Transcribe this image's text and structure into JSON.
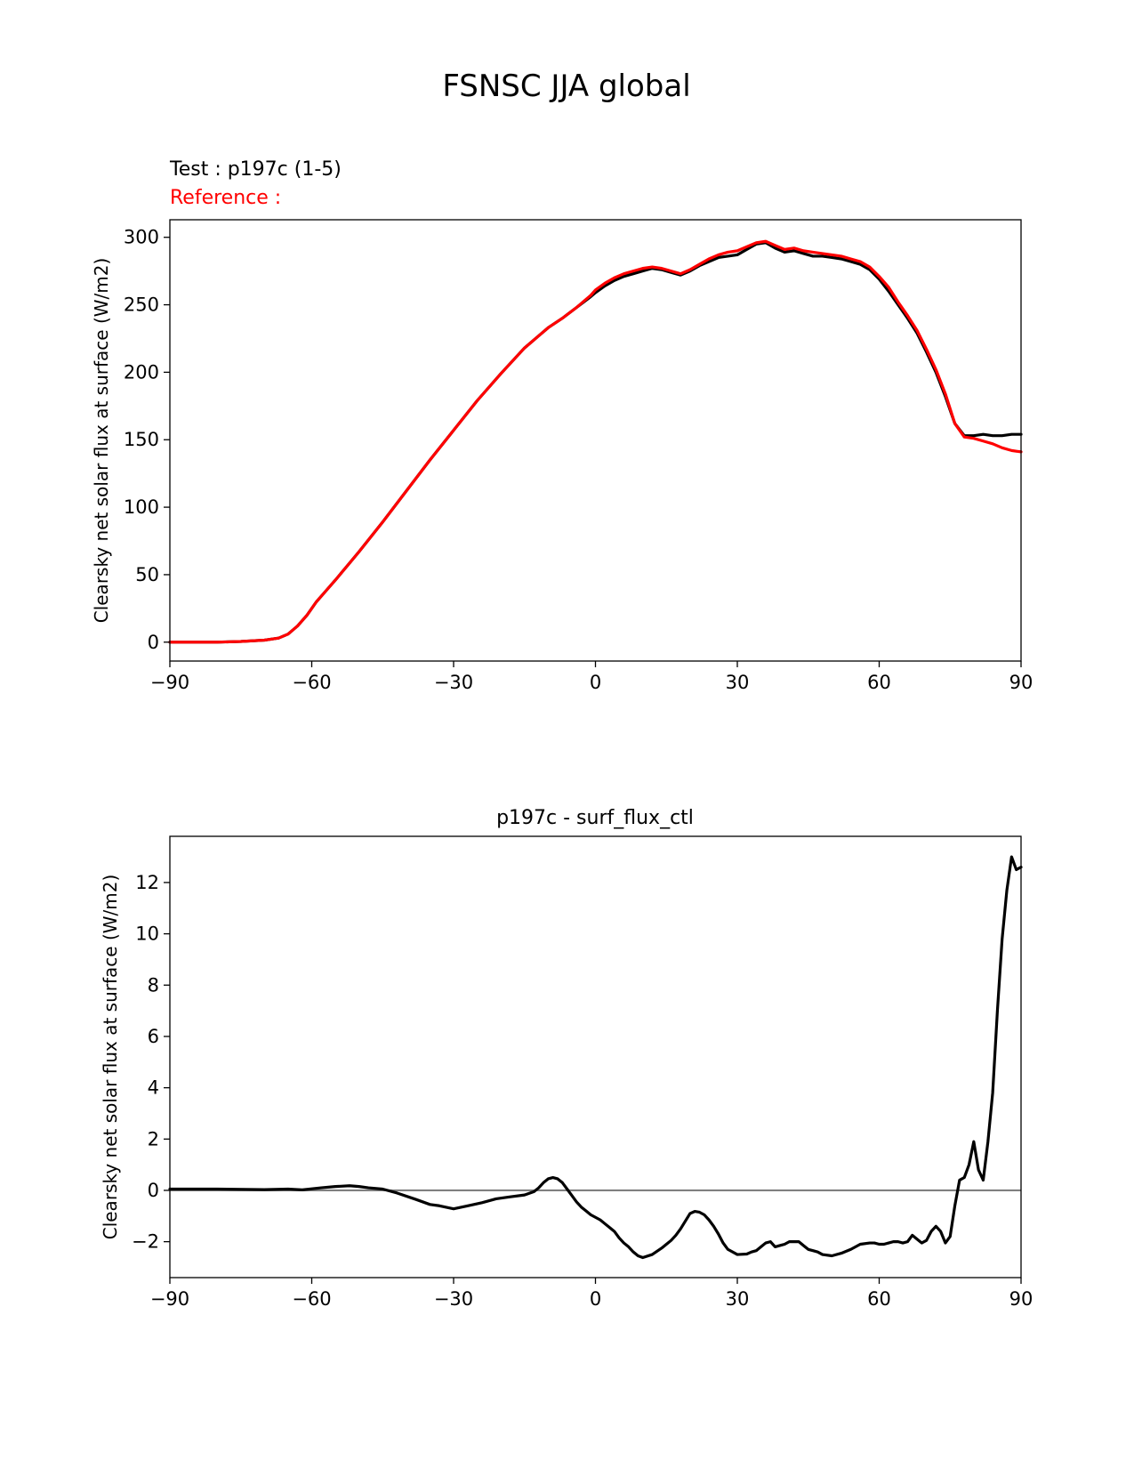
{
  "figure": {
    "title": "FSNSC JJA global"
  },
  "chart_data": [
    {
      "type": "line",
      "test_label": "Test : p197c (1-5)",
      "reference_label": "Reference :",
      "title": "",
      "xlabel": "",
      "ylabel": "Clearsky net solar flux at surface (W/m2)",
      "xlim": [
        -90,
        90
      ],
      "ylim": [
        -14,
        313
      ],
      "xticks": [
        -90,
        -60,
        -30,
        0,
        30,
        60,
        90
      ],
      "xtick_labels": [
        "−90",
        "−60",
        "−30",
        "0",
        "30",
        "60",
        "90"
      ],
      "yticks": [
        0,
        50,
        100,
        150,
        200,
        250,
        300
      ],
      "ytick_labels": [
        "0",
        "50",
        "100",
        "150",
        "200",
        "250",
        "300"
      ],
      "grid": false,
      "series": [
        {
          "role": "test",
          "color": "#000000",
          "x": [
            -90,
            -80,
            -75,
            -70,
            -67,
            -65,
            -63,
            -61,
            -59,
            -57,
            -55,
            -50,
            -45,
            -40,
            -35,
            -30,
            -25,
            -20,
            -15,
            -12,
            -10,
            -7,
            -4,
            -1,
            0,
            2,
            4,
            6,
            8,
            10,
            12,
            14,
            16,
            18,
            20,
            22,
            24,
            26,
            28,
            30,
            32,
            34,
            36,
            38,
            40,
            42,
            44,
            46,
            48,
            50,
            52,
            54,
            56,
            58,
            60,
            62,
            64,
            66,
            68,
            70,
            72,
            74,
            76,
            78,
            80,
            82,
            84,
            86,
            88,
            90
          ],
          "y": [
            0,
            0,
            0.5,
            1.5,
            3,
            6,
            12,
            20,
            30,
            38,
            46,
            67,
            89,
            112,
            135,
            157,
            179,
            199,
            218,
            227,
            233,
            240,
            248,
            256,
            259,
            264,
            268,
            271,
            273,
            275,
            277,
            276,
            274,
            272,
            275,
            279,
            282,
            285,
            286,
            287,
            291,
            295,
            296,
            292,
            289,
            290,
            288,
            286,
            286,
            285,
            284,
            282,
            280,
            276,
            269,
            260,
            250,
            240,
            229,
            215,
            200,
            182,
            162,
            153,
            153,
            154,
            153,
            153,
            154,
            154
          ]
        },
        {
          "role": "reference",
          "color": "#ff0000",
          "x": [
            -90,
            -80,
            -75,
            -70,
            -67,
            -65,
            -63,
            -61,
            -59,
            -57,
            -55,
            -50,
            -45,
            -40,
            -35,
            -30,
            -25,
            -20,
            -15,
            -12,
            -10,
            -7,
            -4,
            -1,
            0,
            2,
            4,
            6,
            8,
            10,
            12,
            14,
            16,
            18,
            20,
            22,
            24,
            26,
            28,
            30,
            32,
            34,
            36,
            38,
            40,
            42,
            44,
            46,
            48,
            50,
            52,
            54,
            56,
            58,
            60,
            62,
            64,
            66,
            68,
            70,
            72,
            74,
            76,
            78,
            80,
            82,
            84,
            86,
            88,
            90
          ],
          "y": [
            0,
            0,
            0.5,
            1.5,
            3,
            6,
            12,
            20,
            30,
            38,
            46,
            67,
            89,
            112,
            135,
            157,
            179,
            199,
            218,
            227,
            233,
            240,
            248,
            257,
            261,
            266,
            270,
            273,
            275,
            277,
            278,
            277,
            275,
            273,
            276,
            280,
            284,
            287,
            289,
            290,
            293,
            296,
            297,
            294,
            291,
            292,
            290,
            289,
            288,
            287,
            286,
            284,
            282,
            278,
            271,
            263,
            252,
            242,
            231,
            217,
            202,
            184,
            162,
            152,
            151,
            149,
            147,
            144,
            142,
            141
          ]
        }
      ]
    },
    {
      "type": "line",
      "title": "p197c - surf_flux_ctl",
      "xlabel": "",
      "ylabel": "Clearsky net solar flux at surface (W/m2)",
      "xlim": [
        -90,
        90
      ],
      "ylim": [
        -3.4,
        13.8
      ],
      "xticks": [
        -90,
        -60,
        -30,
        0,
        30,
        60,
        90
      ],
      "xtick_labels": [
        "−90",
        "−60",
        "−30",
        "0",
        "30",
        "60",
        "90"
      ],
      "yticks": [
        -2,
        0,
        2,
        4,
        6,
        8,
        10,
        12
      ],
      "ytick_labels": [
        "−2",
        "0",
        "2",
        "4",
        "6",
        "8",
        "10",
        "12"
      ],
      "grid": false,
      "zero_line": {
        "value": 0,
        "color": "#808080"
      },
      "series": [
        {
          "role": "difference",
          "color": "#000000",
          "x": [
            -90,
            -80,
            -70,
            -65,
            -62,
            -58,
            -55,
            -52,
            -50,
            -48,
            -45,
            -42,
            -38,
            -35,
            -33,
            -30,
            -27,
            -24,
            -21,
            -18,
            -15,
            -13,
            -12,
            -11,
            -10,
            -9,
            -8,
            -7,
            -6,
            -5,
            -4,
            -3,
            -2,
            -1,
            0,
            1,
            2,
            3,
            4,
            5,
            6,
            7,
            8,
            9,
            10,
            12,
            14,
            16,
            17,
            18,
            19,
            20,
            21,
            22,
            23,
            24,
            25,
            26,
            27,
            28,
            30,
            32,
            33,
            34,
            35,
            36,
            37,
            38,
            39,
            40,
            41,
            42,
            43,
            44,
            45,
            46,
            47,
            48,
            50,
            52,
            54,
            55,
            56,
            58,
            59,
            60,
            61,
            62,
            63,
            64,
            65,
            66,
            67,
            68,
            69,
            70,
            71,
            72,
            73,
            74,
            75,
            76,
            77,
            78,
            79,
            80,
            81,
            82,
            83,
            84,
            85,
            86,
            87,
            88,
            89,
            90
          ],
          "y": [
            0.05,
            0.05,
            0.03,
            0.05,
            0.02,
            0.1,
            0.15,
            0.18,
            0.15,
            0.1,
            0.05,
            -0.1,
            -0.35,
            -0.55,
            -0.6,
            -0.72,
            -0.6,
            -0.48,
            -0.33,
            -0.25,
            -0.18,
            -0.05,
            0.1,
            0.3,
            0.45,
            0.5,
            0.45,
            0.3,
            0.05,
            -0.2,
            -0.45,
            -0.65,
            -0.8,
            -0.95,
            -1.05,
            -1.15,
            -1.3,
            -1.45,
            -1.6,
            -1.85,
            -2.05,
            -2.2,
            -2.4,
            -2.55,
            -2.62,
            -2.5,
            -2.25,
            -1.95,
            -1.75,
            -1.5,
            -1.2,
            -0.9,
            -0.82,
            -0.85,
            -0.95,
            -1.15,
            -1.4,
            -1.7,
            -2.05,
            -2.3,
            -2.5,
            -2.48,
            -2.4,
            -2.35,
            -2.2,
            -2.05,
            -2.0,
            -2.2,
            -2.15,
            -2.1,
            -2.0,
            -2.0,
            -2.0,
            -2.15,
            -2.3,
            -2.35,
            -2.4,
            -2.5,
            -2.55,
            -2.45,
            -2.3,
            -2.2,
            -2.1,
            -2.05,
            -2.05,
            -2.1,
            -2.1,
            -2.05,
            -2.0,
            -2.0,
            -2.05,
            -2.0,
            -1.75,
            -1.9,
            -2.05,
            -1.95,
            -1.6,
            -1.4,
            -1.6,
            -2.05,
            -1.8,
            -0.6,
            0.4,
            0.5,
            1.0,
            1.9,
            0.8,
            0.4,
            1.9,
            3.8,
            7.0,
            9.8,
            11.7,
            13.0,
            12.5,
            12.6
          ]
        }
      ]
    }
  ]
}
